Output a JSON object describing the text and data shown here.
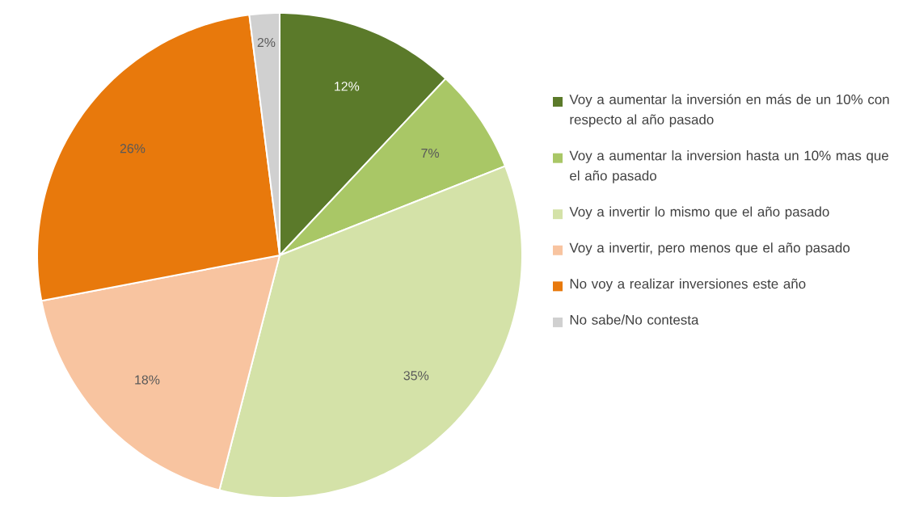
{
  "chart_data": {
    "type": "pie",
    "categories": [
      "Voy a aumentar la inversión en más de un 10% con respecto al año pasado",
      "Voy a aumentar la inversion hasta un 10% mas que el año pasado",
      "Voy a invertir lo mismo que el año pasado",
      "Voy a invertir, pero menos que el año pasado",
      "No voy a realizar inversiones este año",
      "No sabe/No contesta"
    ],
    "values": [
      12,
      7,
      35,
      18,
      26,
      2
    ],
    "value_labels": [
      "12%",
      "7%",
      "35%",
      "18%",
      "26%",
      "2%"
    ],
    "colors": [
      "#5b7a2a",
      "#a9c766",
      "#d4e2a8",
      "#f8c4a0",
      "#e8790c",
      "#d0d0d0"
    ],
    "legend": "right"
  }
}
